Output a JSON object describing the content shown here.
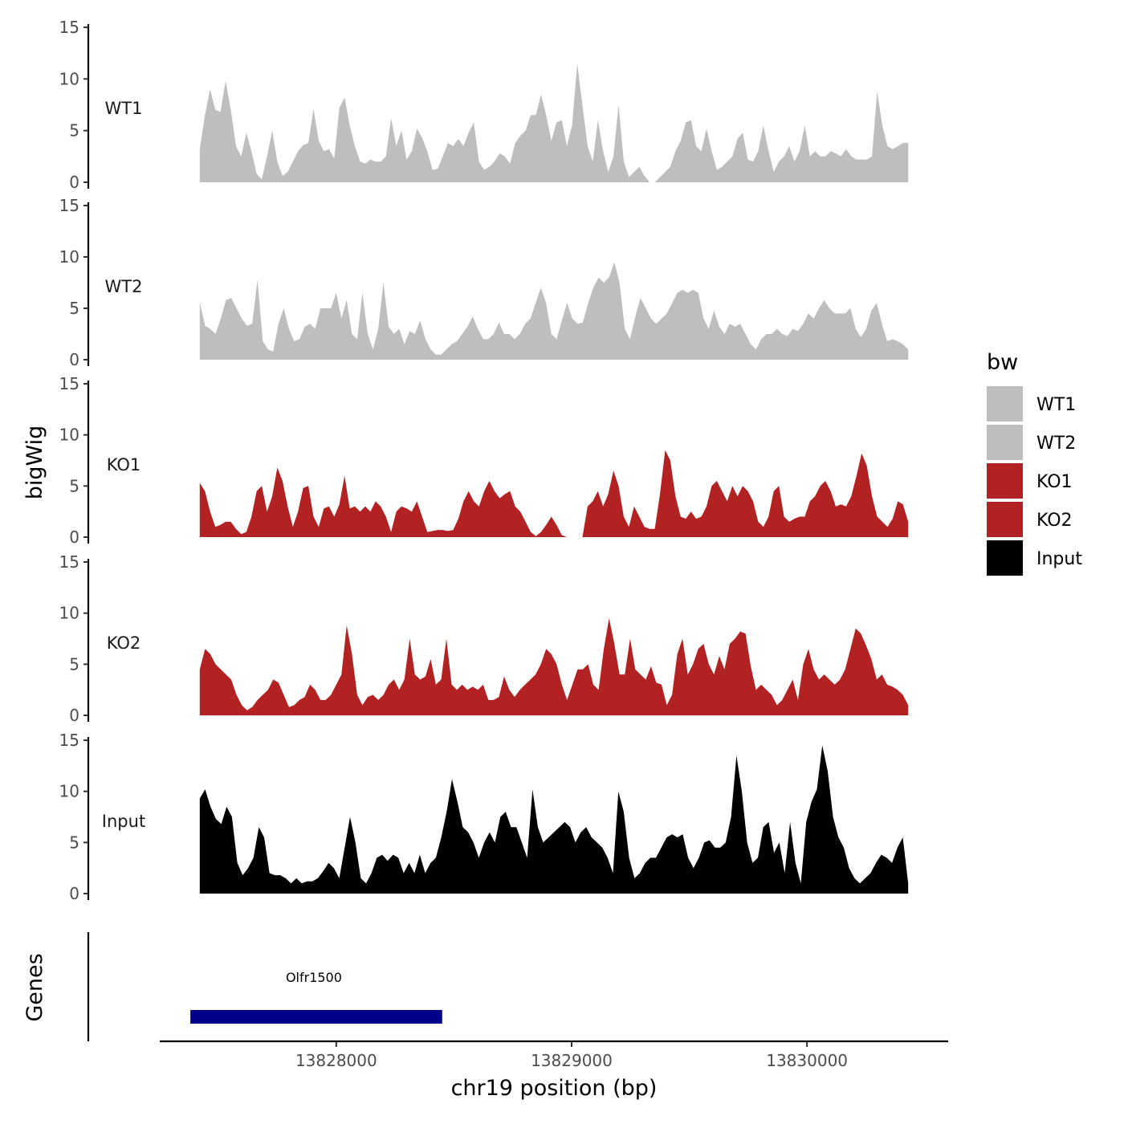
{
  "chart_data": {
    "type": "area",
    "ylabel": "bigWig",
    "xlabel": "chr19 position (bp)",
    "xlim": [
      13827250,
      13830600
    ],
    "data_xrange": [
      13827420,
      13830430
    ],
    "ylim": [
      0,
      15
    ],
    "yticks": [
      0,
      5,
      10,
      15
    ],
    "xticks": [
      13828000,
      13829000,
      13830000
    ],
    "xtick_labels": [
      "13828000",
      "13829000",
      "13830000"
    ],
    "tracks": [
      {
        "name": "WT1",
        "label": "WT1",
        "color": "#bebebe",
        "values": [
          3.2,
          6.5,
          9.0,
          7.0,
          6.8,
          9.8,
          7.0,
          3.5,
          2.5,
          4.8,
          3.0,
          0.8,
          0.3,
          2.5,
          5.0,
          2.0,
          0.6,
          1.0,
          2.0,
          3.0,
          3.6,
          3.8,
          7.1,
          4.0,
          3.0,
          3.2,
          2.3,
          7.2,
          8.2,
          5.5,
          3.5,
          2.0,
          1.8,
          2.2,
          2.0,
          2.0,
          2.5,
          6.2,
          3.5,
          5.0,
          2.2,
          3.0,
          5.2,
          4.3,
          3.0,
          1.2,
          1.3,
          2.5,
          3.8,
          3.5,
          4.2,
          3.5,
          4.8,
          5.8,
          2.0,
          1.2,
          1.5,
          2.0,
          2.8,
          2.5,
          1.8,
          3.8,
          4.5,
          5.0,
          6.5,
          6.5,
          8.5,
          6.5,
          4.0,
          5.8,
          6.0,
          3.5,
          5.5,
          11.5,
          7.5,
          3.5,
          2.0,
          6.0,
          3.0,
          1.0,
          2.5,
          7.5,
          2.0,
          0.5,
          1.0,
          1.5,
          0.6,
          0.0,
          0.0,
          0.5,
          1.0,
          1.5,
          3.0,
          4.0,
          5.8,
          6.0,
          3.5,
          3.0,
          5.2,
          3.0,
          1.2,
          1.5,
          2.0,
          2.5,
          4.2,
          4.8,
          2.2,
          2.0,
          3.0,
          5.5,
          3.0,
          1.0,
          2.0,
          2.5,
          3.5,
          2.0,
          3.0,
          5.5,
          2.5,
          3.0,
          2.5,
          2.5,
          3.0,
          2.8,
          2.5,
          3.2,
          2.5,
          2.2,
          2.2,
          2.2,
          2.5,
          8.8,
          5.5,
          3.5,
          3.2,
          3.5,
          3.8,
          3.8
        ]
      },
      {
        "name": "WT2",
        "label": "WT2",
        "color": "#bebebe",
        "values": [
          5.6,
          3.3,
          3.0,
          2.5,
          4.0,
          5.8,
          6.0,
          5.0,
          4.0,
          3.3,
          3.5,
          7.8,
          1.8,
          1.0,
          0.8,
          3.5,
          5.0,
          3.0,
          1.8,
          2.0,
          3.2,
          3.5,
          3.0,
          5.0,
          5.0,
          5.0,
          6.5,
          4.0,
          5.8,
          2.5,
          2.0,
          6.5,
          2.5,
          1.0,
          3.0,
          7.5,
          3.2,
          2.5,
          3.0,
          1.5,
          2.8,
          2.5,
          3.8,
          2.0,
          1.0,
          0.5,
          0.5,
          1.0,
          1.5,
          1.8,
          2.5,
          3.2,
          4.2,
          3.0,
          2.0,
          2.0,
          2.5,
          3.6,
          2.5,
          2.5,
          2.0,
          2.5,
          3.5,
          4.0,
          5.5,
          7.0,
          5.5,
          2.5,
          2.0,
          3.8,
          5.5,
          4.0,
          3.5,
          3.6,
          5.5,
          7.0,
          8.0,
          7.5,
          8.0,
          9.5,
          7.5,
          3.0,
          2.0,
          4.2,
          6.0,
          5.0,
          4.0,
          3.5,
          4.0,
          4.5,
          5.5,
          6.5,
          6.8,
          6.5,
          6.8,
          6.5,
          4.0,
          3.0,
          4.8,
          3.2,
          2.5,
          3.5,
          3.2,
          3.5,
          2.5,
          1.5,
          1.0,
          2.0,
          2.5,
          2.5,
          3.0,
          2.5,
          2.3,
          3.0,
          2.8,
          3.5,
          4.5,
          4.0,
          5.0,
          5.8,
          5.0,
          4.5,
          4.5,
          4.5,
          5.0,
          3.0,
          2.2,
          3.0,
          4.8,
          5.5,
          3.5,
          1.8,
          2.0,
          1.8,
          1.5,
          1.0
        ]
      },
      {
        "name": "KO1",
        "label": "KO1",
        "color": "#b22222",
        "values": [
          5.3,
          4.5,
          2.5,
          1.0,
          1.2,
          1.5,
          1.5,
          0.8,
          0.3,
          0.5,
          2.0,
          4.5,
          5.0,
          2.5,
          4.0,
          6.8,
          5.5,
          3.0,
          1.0,
          2.5,
          4.8,
          5.0,
          2.0,
          1.0,
          2.8,
          3.0,
          2.0,
          3.2,
          6.0,
          2.8,
          3.0,
          2.5,
          3.0,
          2.5,
          3.5,
          3.0,
          2.0,
          0.5,
          2.5,
          3.0,
          2.8,
          2.5,
          3.5,
          2.0,
          0.5,
          0.6,
          0.7,
          0.7,
          0.6,
          0.7,
          1.8,
          3.5,
          4.5,
          3.5,
          3.0,
          4.5,
          5.5,
          4.5,
          3.8,
          4.2,
          4.5,
          3.0,
          2.5,
          1.5,
          0.5,
          0.1,
          0.5,
          1.2,
          2.0,
          1.2,
          0.2,
          0.0,
          0.0,
          0.0,
          0.0,
          3.0,
          3.5,
          4.5,
          3.0,
          4.2,
          6.5,
          5.0,
          2.0,
          1.0,
          3.0,
          2.0,
          1.0,
          0.8,
          0.8,
          4.2,
          8.5,
          7.5,
          4.0,
          2.0,
          1.8,
          2.5,
          1.8,
          2.0,
          3.0,
          5.0,
          5.5,
          4.5,
          3.5,
          5.0,
          4.0,
          5.0,
          4.5,
          3.5,
          1.5,
          1.0,
          2.0,
          4.5,
          5.0,
          2.0,
          1.5,
          1.8,
          2.0,
          2.0,
          3.5,
          4.0,
          5.0,
          5.5,
          4.5,
          3.0,
          3.2,
          3.0,
          4.0,
          6.0,
          8.2,
          7.0,
          4.0,
          2.0,
          1.5,
          1.0,
          1.8,
          3.5,
          3.2,
          1.5
        ]
      },
      {
        "name": "KO2",
        "label": "KO2",
        "color": "#b22222",
        "values": [
          4.5,
          6.5,
          6.0,
          5.0,
          4.5,
          4.0,
          3.5,
          2.0,
          1.0,
          0.5,
          0.8,
          1.5,
          2.0,
          2.5,
          3.5,
          3.2,
          2.0,
          0.8,
          1.0,
          1.5,
          1.8,
          3.0,
          2.5,
          1.5,
          1.5,
          2.0,
          3.0,
          4.0,
          8.8,
          6.0,
          2.0,
          1.0,
          1.8,
          2.0,
          1.5,
          2.0,
          3.0,
          3.5,
          2.5,
          3.5,
          7.5,
          4.0,
          3.5,
          3.8,
          5.5,
          3.0,
          3.5,
          7.5,
          3.0,
          2.5,
          3.0,
          2.5,
          2.8,
          2.5,
          3.0,
          1.5,
          1.5,
          1.8,
          3.8,
          2.5,
          1.8,
          2.5,
          3.0,
          3.5,
          4.0,
          5.0,
          6.5,
          6.0,
          5.0,
          3.0,
          1.5,
          3.0,
          4.5,
          4.5,
          5.0,
          3.0,
          2.5,
          6.5,
          9.5,
          7.0,
          4.0,
          4.0,
          7.5,
          4.5,
          4.0,
          3.5,
          4.8,
          3.2,
          3.0,
          1.0,
          2.0,
          6.0,
          7.5,
          4.0,
          5.0,
          6.5,
          7.0,
          5.0,
          4.0,
          5.8,
          4.5,
          7.0,
          7.5,
          8.2,
          8.0,
          4.8,
          2.5,
          3.0,
          2.5,
          2.0,
          1.0,
          1.5,
          2.5,
          3.5,
          1.5,
          5.0,
          6.5,
          4.5,
          3.5,
          4.0,
          3.5,
          3.0,
          3.5,
          4.5,
          6.5,
          8.5,
          8.0,
          6.8,
          5.5,
          3.5,
          4.0,
          3.0,
          2.8,
          2.5,
          2.0,
          1.0
        ]
      },
      {
        "name": "Input",
        "label": "Input",
        "color": "#000000",
        "values": [
          9.3,
          10.2,
          8.5,
          7.3,
          6.8,
          8.5,
          7.5,
          3.0,
          1.8,
          2.5,
          3.5,
          6.5,
          5.5,
          2.0,
          1.8,
          1.8,
          1.5,
          1.0,
          1.5,
          1.0,
          1.2,
          1.2,
          1.5,
          2.2,
          3.0,
          2.5,
          1.5,
          4.5,
          7.5,
          5.0,
          1.5,
          1.0,
          2.0,
          3.5,
          3.8,
          3.2,
          3.8,
          3.5,
          2.0,
          3.0,
          2.0,
          3.8,
          2.0,
          3.0,
          3.5,
          5.5,
          8.0,
          11.2,
          9.0,
          6.5,
          6.0,
          5.0,
          3.5,
          5.0,
          6.0,
          5.0,
          7.5,
          8.0,
          6.5,
          6.5,
          5.0,
          3.5,
          10.2,
          6.5,
          5.0,
          5.5,
          6.0,
          6.5,
          7.0,
          6.5,
          5.0,
          6.0,
          6.5,
          5.5,
          5.0,
          4.5,
          3.5,
          2.0,
          10.0,
          8.0,
          3.5,
          1.5,
          2.0,
          3.0,
          3.5,
          3.5,
          4.5,
          5.5,
          5.8,
          5.5,
          5.8,
          3.5,
          2.5,
          3.5,
          5.0,
          5.2,
          4.5,
          4.5,
          5.0,
          7.5,
          13.5,
          10.0,
          5.0,
          3.0,
          3.5,
          6.5,
          7.0,
          4.0,
          5.0,
          2.0,
          7.0,
          3.0,
          1.0,
          7.0,
          9.0,
          10.2,
          14.5,
          12.0,
          7.5,
          5.5,
          4.5,
          2.5,
          1.5,
          1.0,
          1.5,
          2.0,
          3.0,
          3.8,
          3.5,
          3.0,
          4.5,
          5.5,
          1.0
        ]
      }
    ],
    "legend": {
      "title": "bw",
      "entries": [
        {
          "label": "WT1",
          "color": "#bebebe"
        },
        {
          "label": "WT2",
          "color": "#bebebe"
        },
        {
          "label": "KO1",
          "color": "#b22222"
        },
        {
          "label": "KO2",
          "color": "#b22222"
        },
        {
          "label": "Input",
          "color": "#000000"
        }
      ]
    },
    "genes_panel": {
      "ylabel": "Genes",
      "genes": [
        {
          "name": "Olfr1500",
          "start": 13827380,
          "end": 13828450,
          "color": "#00008b"
        }
      ]
    }
  }
}
